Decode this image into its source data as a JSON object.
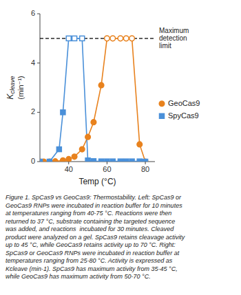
{
  "chart_data": {
    "type": "line",
    "x_label": "Temp (°C)",
    "y_label": [
      "K",
      "cleave",
      "(min⁻¹)"
    ],
    "xlim": [
      25,
      85
    ],
    "xticks": [
      40,
      60,
      80
    ],
    "ylim": [
      0,
      6
    ],
    "yticks": [
      0,
      2,
      4,
      6
    ],
    "legend": "right",
    "series": [
      {
        "name": "GeoCas9",
        "color": "#E8821E",
        "marker": "circle",
        "x": [
          25,
          27,
          30,
          33,
          37,
          40,
          43,
          47,
          50,
          53,
          57,
          60,
          63,
          67,
          70,
          73,
          77,
          80
        ],
        "values": [
          0.0,
          0.0,
          0.0,
          0.01,
          0.05,
          0.1,
          0.2,
          0.5,
          1.0,
          1.6,
          3.1,
          5.0,
          5.0,
          5.0,
          5.0,
          5.0,
          0.7,
          0.0
        ]
      },
      {
        "name": "SpyCas9",
        "color": "#4A90D9",
        "marker": "square",
        "x": [
          25,
          30,
          35,
          37,
          40,
          43,
          47,
          50,
          53,
          57,
          60,
          63,
          67,
          70,
          73,
          77,
          80
        ],
        "values": [
          0.0,
          0.0,
          0.5,
          2.0,
          5.0,
          5.0,
          5.0,
          0.05,
          0.02,
          0.01,
          0.01,
          0.01,
          0.01,
          0.01,
          0.01,
          0.01,
          0.0
        ]
      }
    ],
    "reference_line": {
      "y": 5.0,
      "label": "Maximum\ndetection\nlimit",
      "line_style": "dashed"
    },
    "caption": "Figure 1. SpCas9 vs GeoCas9: Thermostability. Left: SpCas9 or\nGeoCas9 RNPs were incubated in reaction buffer for 10 minutes\nat temperatures ranging from 40-75 °C. Reactions were then\nreturned to 37 °C, substrate containing the targeted sequence\nwas added, and reactions  incubated for 30 minutes. Cleaved\nproduct were analyzed on a gel. SpCas9 retains cleavage activity\nup to 45 °C, while GeoCas9 retains activity up to 70 °C. Right:\nSpCas9 or GeoCas9 RNPs were incubated in reaction buffer at\ntemperatures ranging from 25-80 °C. Activity is expressed as\nKcleave (min-1). SpCas9 has maximum activity from 35-45 °C,\nwhile GeoCas9 has maximum activity from 50-70 °C."
  }
}
